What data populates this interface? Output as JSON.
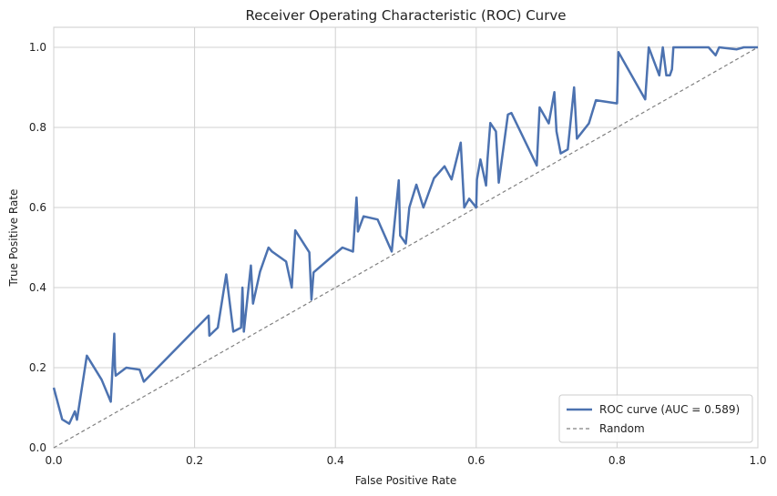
{
  "chart_data": {
    "type": "line",
    "title": "Receiver Operating Characteristic (ROC) Curve",
    "xlabel": "False Positive Rate",
    "ylabel": "True Positive Rate",
    "xlim": [
      0,
      1
    ],
    "ylim": [
      0,
      1.05
    ],
    "xticks": [
      "0.0",
      "0.2",
      "0.4",
      "0.6",
      "0.8",
      "1.0"
    ],
    "yticks": [
      "0.0",
      "0.2",
      "0.4",
      "0.6",
      "0.8",
      "1.0"
    ],
    "grid": true,
    "legend_position": "lower-right",
    "colors": {
      "roc": "#4c72b0",
      "random": "#808080"
    },
    "series": [
      {
        "name": "ROC curve (AUC = 0.589)",
        "style": "solid",
        "x": [
          0.0,
          0.012,
          0.022,
          0.03,
          0.033,
          0.047,
          0.068,
          0.081,
          0.086,
          0.087,
          0.088,
          0.103,
          0.122,
          0.128,
          0.22,
          0.221,
          0.233,
          0.245,
          0.255,
          0.266,
          0.268,
          0.27,
          0.28,
          0.283,
          0.293,
          0.305,
          0.31,
          0.33,
          0.338,
          0.343,
          0.363,
          0.366,
          0.369,
          0.41,
          0.425,
          0.43,
          0.431,
          0.432,
          0.44,
          0.46,
          0.48,
          0.49,
          0.492,
          0.5,
          0.505,
          0.515,
          0.525,
          0.54,
          0.555,
          0.565,
          0.578,
          0.583,
          0.59,
          0.6,
          0.601,
          0.606,
          0.614,
          0.616,
          0.62,
          0.628,
          0.632,
          0.645,
          0.65,
          0.686,
          0.69,
          0.703,
          0.711,
          0.714,
          0.72,
          0.73,
          0.739,
          0.743,
          0.76,
          0.77,
          0.8,
          0.802,
          0.84,
          0.845,
          0.86,
          0.865,
          0.87,
          0.875,
          0.878,
          0.88,
          0.9,
          0.93,
          0.94,
          0.945,
          0.97,
          0.98,
          1.0
        ],
        "y": [
          0.15,
          0.071,
          0.06,
          0.091,
          0.07,
          0.23,
          0.17,
          0.115,
          0.285,
          0.2,
          0.18,
          0.2,
          0.195,
          0.165,
          0.33,
          0.28,
          0.3,
          0.433,
          0.29,
          0.3,
          0.4,
          0.29,
          0.455,
          0.36,
          0.44,
          0.5,
          0.49,
          0.465,
          0.4,
          0.543,
          0.488,
          0.37,
          0.438,
          0.5,
          0.49,
          0.625,
          0.59,
          0.54,
          0.578,
          0.57,
          0.49,
          0.668,
          0.53,
          0.51,
          0.6,
          0.657,
          0.6,
          0.673,
          0.703,
          0.67,
          0.762,
          0.6,
          0.622,
          0.6,
          0.67,
          0.72,
          0.655,
          0.72,
          0.811,
          0.79,
          0.662,
          0.832,
          0.836,
          0.705,
          0.85,
          0.81,
          0.888,
          0.79,
          0.735,
          0.745,
          0.9,
          0.772,
          0.81,
          0.868,
          0.86,
          0.988,
          0.87,
          1.0,
          0.93,
          1.0,
          0.93,
          0.93,
          0.945,
          1.0,
          1.0,
          1.0,
          0.98,
          1.0,
          0.995,
          1.0,
          1.0
        ]
      },
      {
        "name": "Random",
        "style": "dashed",
        "x": [
          0,
          1
        ],
        "y": [
          0,
          1
        ]
      }
    ]
  }
}
